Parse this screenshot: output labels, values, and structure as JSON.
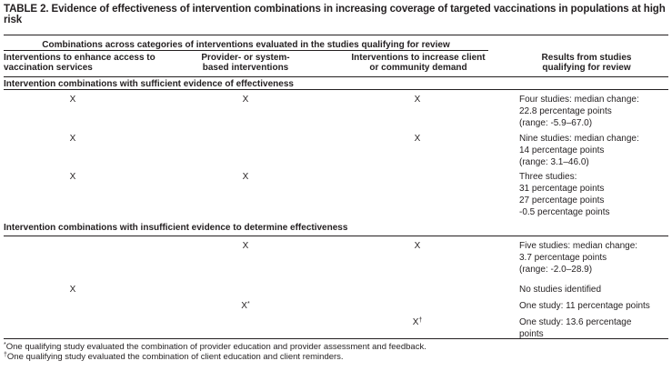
{
  "title": "TABLE 2. Evidence of effectiveness of intervention combinations in increasing coverage of targeted vaccinations in populations at high risk",
  "group_header": "Combinations across categories of interventions evaluated in the studies qualifying for review",
  "columns": [
    "Interventions to enhance access to vaccination services",
    "Provider- or system-based interventions",
    "Interventions to increase client or community demand",
    "Results from studies qualifying for review"
  ],
  "sections": [
    {
      "label": "Intervention combinations with sufficient evidence of effectiveness",
      "rows": [
        {
          "access": "X",
          "provider": "X",
          "demand": "X",
          "results": [
            "Four studies: median change:",
            "22.8 percentage points",
            "(range: -5.9–67.0)"
          ]
        },
        {
          "access": "X",
          "provider": "",
          "demand": "X",
          "results": [
            "Nine studies: median change:",
            "14 percentage points",
            "(range: 3.1–46.0)"
          ]
        },
        {
          "access": "X",
          "provider": "X",
          "demand": "",
          "results": [
            "Three studies:",
            "31 percentage points",
            "27 percentage points",
            "-0.5 percentage points"
          ]
        }
      ]
    },
    {
      "label": "Intervention combinations with insufficient evidence to determine effectiveness",
      "rows": [
        {
          "access": "",
          "provider": "X",
          "demand": "X",
          "results": [
            "Five studies: median change:",
            "3.7 percentage points",
            "(range: -2.0–28.9)"
          ]
        },
        {
          "access": "X",
          "provider": "",
          "demand": "",
          "results": [
            "No studies identified"
          ]
        },
        {
          "access": "",
          "provider": "X",
          "provider_mark": "*",
          "demand": "",
          "results": [
            "One study: 11 percentage points"
          ]
        },
        {
          "access": "",
          "provider": "",
          "demand": "X",
          "demand_mark": "†",
          "results": [
            "One study: 13.6 percentage",
            "points"
          ]
        }
      ]
    }
  ],
  "footnotes": [
    {
      "mark": "*",
      "text": "One qualifying study evaluated the combination of provider education and provider assessment and feedback."
    },
    {
      "mark": "†",
      "text": "One qualifying study evaluated the combination of client education and client reminders."
    }
  ]
}
